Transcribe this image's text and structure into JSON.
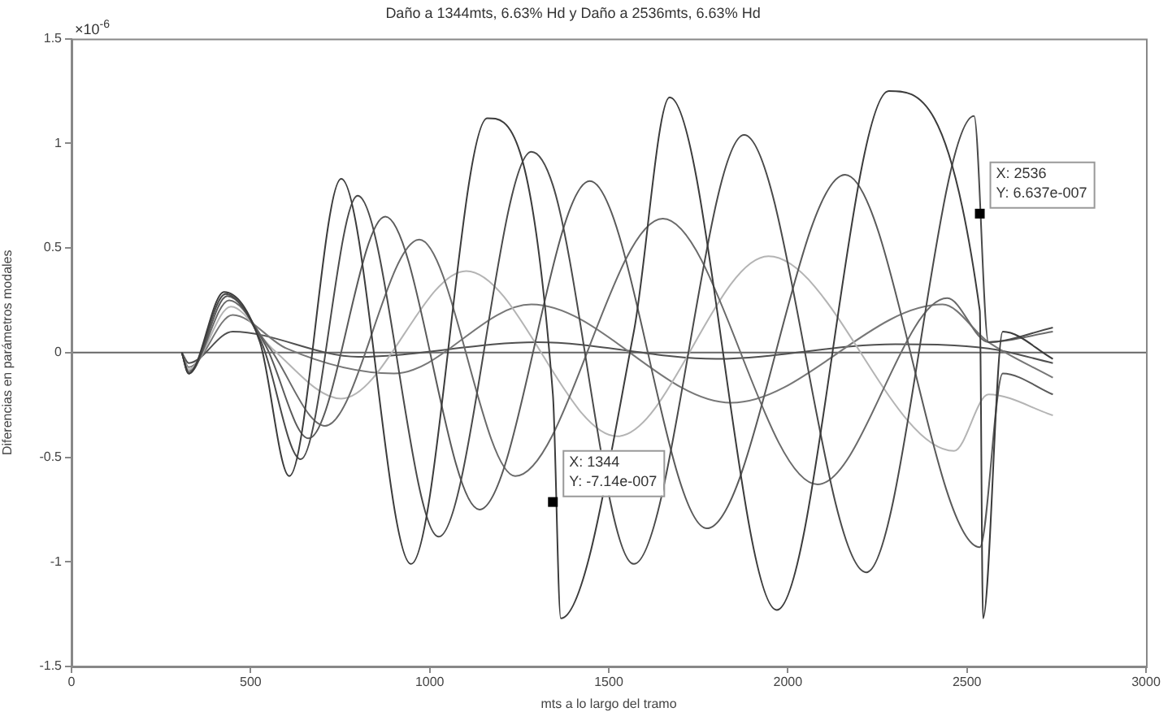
{
  "chart_data": {
    "type": "line",
    "title": "Daño a 1344mts, 6.63% Hd y Daño a 2536mts, 6.63% Hd",
    "xlabel": "mts a lo largo del tramo",
    "ylabel": "Diferencias en parámetros modales",
    "xlim": [
      0,
      3000
    ],
    "xticks": [
      0,
      500,
      1000,
      1500,
      2000,
      2500,
      3000
    ],
    "ylim": [
      -1.5,
      1.5
    ],
    "yticks": [
      -1.5,
      -1,
      -0.5,
      0,
      0.5,
      1,
      1.5
    ],
    "grid": false,
    "legend": false,
    "marker": "none",
    "line_style": "solid",
    "series": [
      {
        "color": "#3c3c3c",
        "x": [
          308,
          327,
          426,
          526,
          608,
          753,
          948,
          1161,
          1344,
          1366,
          1570,
          1670,
          1969,
          2282,
          2536,
          2545,
          2600,
          2740
        ],
        "values": [
          0,
          -0.1,
          0.29,
          0.05,
          -0.59,
          0.83,
          -1.01,
          1.12,
          -0.2,
          -1.27,
          0.1,
          1.22,
          -1.23,
          1.25,
          0.2,
          -1.27,
          0.1,
          -0.03
        ]
      },
      {
        "color": "#4a4a4a",
        "x": [
          308,
          327,
          430,
          530,
          640,
          799,
          1025,
          1284,
          1344,
          1570,
          1878,
          2219,
          2520,
          2560,
          2740
        ],
        "values": [
          0,
          -0.1,
          0.28,
          0.05,
          -0.51,
          0.75,
          -0.88,
          0.96,
          0.8,
          -1.01,
          1.04,
          -1.05,
          1.13,
          0.05,
          0.12
        ]
      },
      {
        "color": "#5a5a5a",
        "x": [
          308,
          327,
          435,
          540,
          662,
          876,
          1139,
          1447,
          1774,
          2160,
          2536,
          2600,
          2740
        ],
        "values": [
          0,
          -0.1,
          0.27,
          0.04,
          -0.41,
          0.65,
          -0.75,
          0.82,
          -0.84,
          0.85,
          -0.93,
          -0.1,
          -0.2
        ]
      },
      {
        "color": "#6a6a6a",
        "x": [
          308,
          327,
          440,
          550,
          708,
          971,
          1239,
          1651,
          2083,
          2445,
          2560,
          2740
        ],
        "values": [
          0,
          -0.09,
          0.25,
          0.03,
          -0.35,
          0.54,
          -0.59,
          0.64,
          -0.63,
          0.26,
          0.05,
          0.1
        ]
      },
      {
        "color": "#b4b4b4",
        "x": [
          308,
          327,
          445,
          560,
          753,
          1102,
          1524,
          1946,
          2464,
          2560,
          2740
        ],
        "values": [
          0,
          -0.08,
          0.22,
          0.02,
          -0.22,
          0.39,
          -0.4,
          0.46,
          -0.47,
          -0.2,
          -0.3
        ]
      },
      {
        "color": "#777777",
        "x": [
          308,
          327,
          450,
          600,
          900,
          1284,
          1842,
          2432,
          2560,
          2740
        ],
        "values": [
          0,
          -0.07,
          0.18,
          0.02,
          -0.1,
          0.23,
          -0.24,
          0.23,
          0.05,
          -0.12
        ]
      },
      {
        "color": "#505050",
        "x": [
          308,
          327,
          450,
          800,
          1300,
          1800,
          2300,
          2560,
          2740
        ],
        "values": [
          0,
          -0.05,
          0.1,
          -0.02,
          0.05,
          -0.03,
          0.04,
          0.02,
          -0.05
        ]
      }
    ],
    "ref_lines": [
      {
        "axis": "y",
        "value": 0,
        "color": "#666666"
      }
    ],
    "annotations": [
      "×10$^{-6}$",
      {
        "text": "X: 1344\nY: -7.14e-007",
        "x": 1344,
        "y": -0.714
      },
      {
        "text": "X: 2536\nY: 6.637e-007",
        "x": 2536,
        "y": 0.664
      }
    ]
  }
}
